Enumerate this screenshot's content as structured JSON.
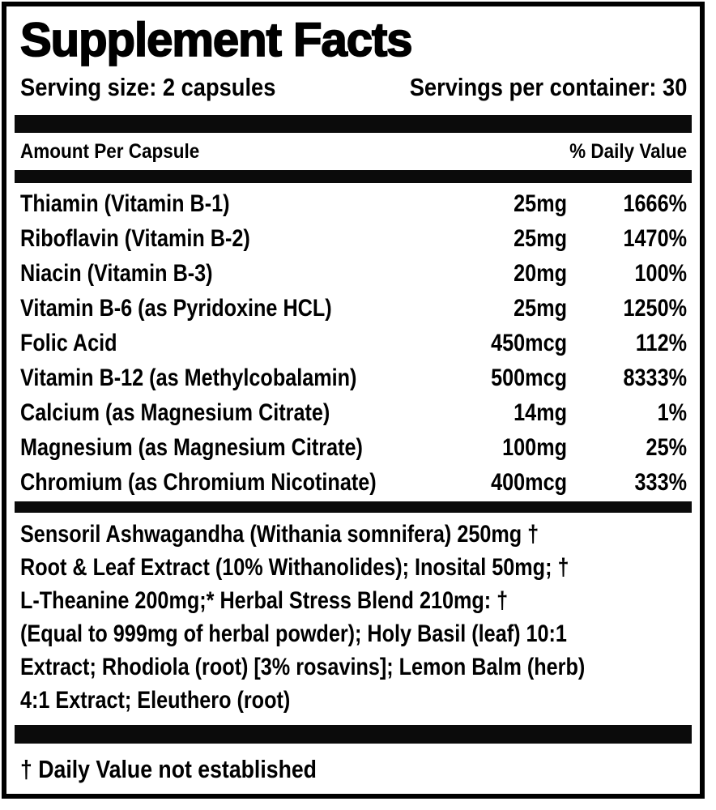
{
  "title": "Supplement Facts",
  "serving": {
    "size": "Serving size: 2 capsules",
    "per_container": "Servings per container: 30"
  },
  "table": {
    "header_left": "Amount Per Capsule",
    "header_right": "% Daily Value",
    "rows": [
      {
        "name": "Thiamin (Vitamin B-1)",
        "amount": "25mg",
        "daily_value": "1666%"
      },
      {
        "name": "Riboflavin (Vitamin B-2)",
        "amount": "25mg",
        "daily_value": "1470%"
      },
      {
        "name": "Niacin (Vitamin B-3)",
        "amount": "20mg",
        "daily_value": "100%"
      },
      {
        "name": "Vitamin B-6 (as Pyridoxine HCL)",
        "amount": "25mg",
        "daily_value": "1250%"
      },
      {
        "name": "Folic Acid",
        "amount": "450mcg",
        "daily_value": "112%"
      },
      {
        "name": "Vitamin B-12 (as Methylcobalamin)",
        "amount": "500mcg",
        "daily_value": "8333%"
      },
      {
        "name": "Calcium (as Magnesium Citrate)",
        "amount": "14mg",
        "daily_value": "1%"
      },
      {
        "name": "Magnesium (as Magnesium Citrate)",
        "amount": "100mg",
        "daily_value": "25%"
      },
      {
        "name": "Chromium (as Chromium Nicotinate)",
        "amount": "400mcg",
        "daily_value": "333%"
      }
    ]
  },
  "herbal_blend": {
    "lines": [
      "Sensoril Ashwagandha (Withania somnifera) 250mg †",
      "Root & Leaf Extract (10% Withanolides); Inosital 50mg; †",
      "L-Theanine 200mg;* Herbal Stress Blend 210mg: †",
      "(Equal to 999mg of herbal powder); Holy Basil (leaf) 10:1",
      "Extract; Rhodiola (root) [3% rosavins]; Lemon Balm (herb)",
      "4:1 Extract; Eleuthero (root)"
    ]
  },
  "footnote": "† Daily Value not established",
  "colors": {
    "text": "#000000",
    "background": "#ffffff",
    "bar": "#0b0b0b",
    "border": "#000000"
  }
}
